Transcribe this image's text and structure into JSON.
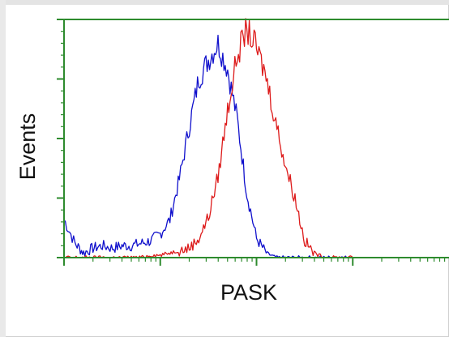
{
  "chart_data": {
    "type": "line",
    "title": "",
    "xlabel": "PASK",
    "ylabel": "Events",
    "x_scale": "log",
    "xlim": [
      1,
      10000
    ],
    "ylim": [
      0,
      100
    ],
    "grid": false,
    "legend": "none",
    "axis_color": "#2e8b2e",
    "x": [
      1.0,
      1.3,
      1.6,
      2.0,
      2.5,
      3.2,
      4.0,
      5.0,
      6.3,
      7.9,
      10.0,
      12.6,
      15.8,
      20.0,
      25.1,
      31.6,
      39.8,
      50.1,
      63.1,
      79.4,
      100.0,
      125.9,
      158.5,
      199.5,
      251.2,
      316.2,
      398.1,
      501.2,
      631.0,
      794.3,
      1000.0
    ],
    "series": [
      {
        "color": "#1010cc",
        "values": [
          16,
          6,
          2,
          4,
          5,
          4,
          5,
          5,
          6,
          7,
          10,
          16,
          33,
          55,
          75,
          83,
          90,
          79,
          58,
          27,
          8,
          2,
          0,
          0,
          0,
          0,
          0,
          0,
          0,
          0,
          0
        ]
      },
      {
        "color": "#dd1a1a",
        "values": [
          0,
          0,
          0,
          0,
          0,
          0,
          0,
          0,
          0,
          1,
          1,
          2,
          3,
          4,
          8,
          17,
          34,
          62,
          85,
          96,
          88,
          76,
          57,
          39,
          25,
          7,
          2,
          0,
          0,
          0,
          0
        ]
      }
    ]
  }
}
